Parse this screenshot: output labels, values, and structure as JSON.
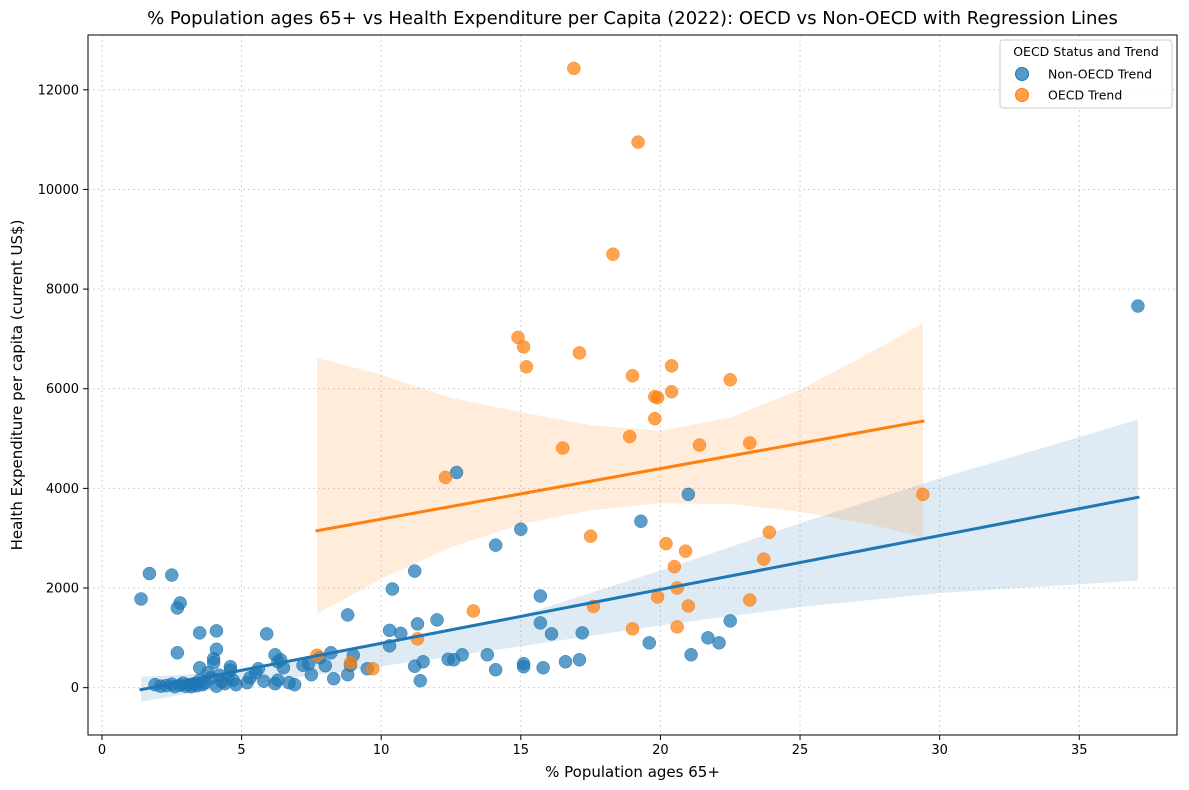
{
  "chart_data": {
    "type": "scatter",
    "title": "% Population ages 65+ vs Health Expenditure per Capita (2022): OECD vs Non-OECD with Regression Lines",
    "xlabel": "% Population ages 65+",
    "ylabel": "Health Expenditure per capita (current US$)",
    "xlim": [
      -0.5,
      38.5
    ],
    "ylim": [
      -950,
      13100
    ],
    "xticks": [
      0,
      5,
      10,
      15,
      20,
      25,
      30,
      35
    ],
    "yticks": [
      0,
      2000,
      4000,
      6000,
      8000,
      10000,
      12000
    ],
    "grid": true,
    "legend": {
      "title": "OECD Status and Trend",
      "placement": "top-right"
    },
    "series": [
      {
        "name": "Non-OECD Trend",
        "color": "#1f77b4",
        "regression": {
          "x": [
            1.4,
            37.1
          ],
          "y": [
            -40,
            3820
          ]
        },
        "band": {
          "x": [
            1.4,
            5,
            10,
            15,
            20,
            25,
            30,
            37.1
          ],
          "lower": [
            -280,
            60,
            430,
            830,
            1250,
            1620,
            1900,
            2150
          ],
          "upper": [
            220,
            320,
            860,
            1450,
            2350,
            3300,
            4200,
            5380
          ]
        },
        "points": [
          [
            1.4,
            1780
          ],
          [
            1.7,
            2290
          ],
          [
            2.5,
            2260
          ],
          [
            2.7,
            1600
          ],
          [
            2.8,
            1700
          ],
          [
            2.7,
            700
          ],
          [
            1.9,
            60
          ],
          [
            2.1,
            30
          ],
          [
            2.3,
            40
          ],
          [
            2.5,
            70
          ],
          [
            2.6,
            20
          ],
          [
            2.8,
            50
          ],
          [
            2.9,
            90
          ],
          [
            3.0,
            30
          ],
          [
            3.1,
            60
          ],
          [
            3.2,
            20
          ],
          [
            3.3,
            80
          ],
          [
            3.4,
            40
          ],
          [
            3.5,
            150
          ],
          [
            3.6,
            60
          ],
          [
            3.7,
            100
          ],
          [
            3.8,
            300
          ],
          [
            3.9,
            200
          ],
          [
            4.0,
            500
          ],
          [
            4.1,
            30
          ],
          [
            4.2,
            250
          ],
          [
            4.3,
            120
          ],
          [
            4.4,
            80
          ],
          [
            4.5,
            200
          ],
          [
            4.6,
            350
          ],
          [
            4.7,
            150
          ],
          [
            4.8,
            60
          ],
          [
            3.5,
            400
          ],
          [
            3.5,
            1100
          ],
          [
            4.1,
            1140
          ],
          [
            4.1,
            770
          ],
          [
            4.0,
            580
          ],
          [
            4.6,
            420
          ],
          [
            5.2,
            100
          ],
          [
            5.3,
            200
          ],
          [
            5.5,
            300
          ],
          [
            5.6,
            380
          ],
          [
            5.8,
            130
          ],
          [
            5.9,
            1080
          ],
          [
            6.2,
            660
          ],
          [
            6.3,
            520
          ],
          [
            6.4,
            560
          ],
          [
            6.5,
            400
          ],
          [
            6.2,
            80
          ],
          [
            6.3,
            150
          ],
          [
            6.7,
            100
          ],
          [
            6.9,
            60
          ],
          [
            7.2,
            450
          ],
          [
            7.4,
            480
          ],
          [
            7.5,
            260
          ],
          [
            7.8,
            600
          ],
          [
            8.0,
            440
          ],
          [
            8.2,
            700
          ],
          [
            8.3,
            180
          ],
          [
            8.8,
            1460
          ],
          [
            8.8,
            260
          ],
          [
            8.9,
            450
          ],
          [
            9.0,
            650
          ],
          [
            9.5,
            380
          ],
          [
            10.3,
            1150
          ],
          [
            10.3,
            840
          ],
          [
            10.4,
            1980
          ],
          [
            10.7,
            1090
          ],
          [
            11.2,
            2340
          ],
          [
            11.2,
            430
          ],
          [
            11.3,
            1280
          ],
          [
            11.4,
            140
          ],
          [
            11.5,
            520
          ],
          [
            12.0,
            1360
          ],
          [
            12.4,
            570
          ],
          [
            12.6,
            560
          ],
          [
            12.7,
            4320
          ],
          [
            12.9,
            660
          ],
          [
            13.8,
            660
          ],
          [
            14.1,
            2860
          ],
          [
            14.1,
            360
          ],
          [
            15.0,
            3180
          ],
          [
            15.1,
            480
          ],
          [
            15.1,
            420
          ],
          [
            15.7,
            1840
          ],
          [
            15.7,
            1300
          ],
          [
            15.8,
            400
          ],
          [
            16.1,
            1080
          ],
          [
            16.6,
            520
          ],
          [
            17.1,
            560
          ],
          [
            17.2,
            1100
          ],
          [
            19.3,
            3340
          ],
          [
            19.6,
            900
          ],
          [
            21.0,
            3880
          ],
          [
            21.1,
            660
          ],
          [
            21.7,
            1000
          ],
          [
            22.1,
            900
          ],
          [
            22.5,
            1340
          ],
          [
            37.1,
            7660
          ]
        ]
      },
      {
        "name": "OECD Trend",
        "color": "#ff7f0e",
        "regression": {
          "x": [
            7.7,
            29.4
          ],
          "y": [
            3150,
            5350
          ]
        },
        "band": {
          "x": [
            7.7,
            10,
            12.5,
            15,
            17.5,
            20,
            22.5,
            25,
            27.5,
            29.4
          ],
          "lower": [
            1480,
            2180,
            2820,
            3280,
            3560,
            3700,
            3690,
            3530,
            3280,
            3020
          ],
          "upper": [
            6620,
            6280,
            5820,
            5530,
            5270,
            5160,
            5420,
            5980,
            6720,
            7310
          ]
        },
        "points": [
          [
            7.7,
            650
          ],
          [
            8.9,
            500
          ],
          [
            9.7,
            380
          ],
          [
            11.3,
            980
          ],
          [
            12.3,
            4220
          ],
          [
            13.3,
            1540
          ],
          [
            14.9,
            7030
          ],
          [
            15.1,
            6840
          ],
          [
            15.2,
            6440
          ],
          [
            16.5,
            4810
          ],
          [
            16.9,
            12430
          ],
          [
            17.1,
            6720
          ],
          [
            17.5,
            3040
          ],
          [
            17.6,
            1630
          ],
          [
            18.3,
            8700
          ],
          [
            18.9,
            5040
          ],
          [
            19.0,
            6260
          ],
          [
            19.0,
            1180
          ],
          [
            19.2,
            10950
          ],
          [
            19.8,
            5840
          ],
          [
            19.8,
            5400
          ],
          [
            19.9,
            5820
          ],
          [
            19.9,
            1820
          ],
          [
            20.2,
            2890
          ],
          [
            20.4,
            5940
          ],
          [
            20.4,
            6460
          ],
          [
            20.5,
            2430
          ],
          [
            20.6,
            2000
          ],
          [
            20.6,
            1220
          ],
          [
            20.9,
            2740
          ],
          [
            21.0,
            1640
          ],
          [
            21.4,
            4870
          ],
          [
            22.5,
            6180
          ],
          [
            23.2,
            4910
          ],
          [
            23.2,
            1760
          ],
          [
            23.7,
            2580
          ],
          [
            23.9,
            3120
          ],
          [
            29.4,
            3880
          ]
        ]
      }
    ]
  }
}
